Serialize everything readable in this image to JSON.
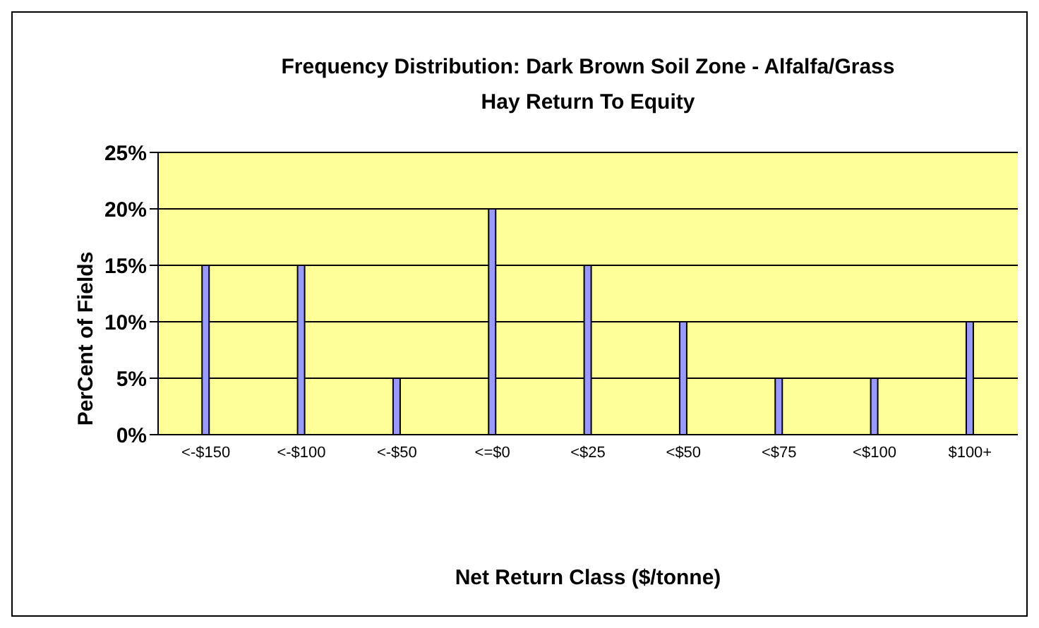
{
  "chart_data": {
    "type": "bar",
    "title": "Frequency Distribution: Dark Brown Soil Zone - Alfalfa/Grass Hay Return To Equity",
    "xlabel": "Net Return Class ($/tonne)",
    "ylabel": "PerCent of Fields",
    "categories": [
      "<-$150",
      "<-$100",
      "<-$50",
      "<=$0",
      "<$25",
      "<$50",
      "<$75",
      "<$100",
      "$100+"
    ],
    "values": [
      15,
      15,
      5,
      20,
      15,
      10,
      5,
      5,
      10
    ],
    "color": "#9999ff",
    "ylim": [
      0,
      25
    ],
    "yticks": [
      {
        "value": 0,
        "label": "0%"
      },
      {
        "value": 5,
        "label": "5%"
      },
      {
        "value": 10,
        "label": "10%"
      },
      {
        "value": 15,
        "label": "15%"
      },
      {
        "value": 20,
        "label": "20%"
      },
      {
        "value": 25,
        "label": "25%"
      }
    ],
    "grid": "y"
  }
}
